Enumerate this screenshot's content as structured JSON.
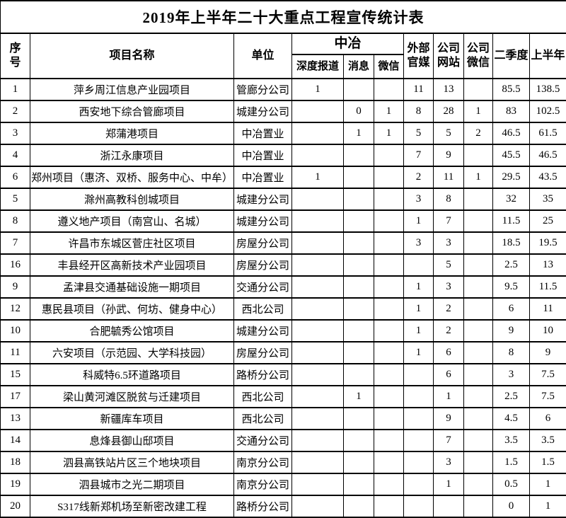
{
  "title": "2019年上半年二十大重点工程宣传统计表",
  "header": {
    "seq": "序号",
    "project": "项目名称",
    "unit": "单位",
    "group_zhongye": "中冶",
    "depth_report": "深度报道",
    "news": "消息",
    "wechat": "微信",
    "external_media": "外部官媒",
    "company_site": "公司网站",
    "company_wechat": "公司微信",
    "q2": "二季度",
    "first_half": "上半年"
  },
  "rows": [
    {
      "seq": "1",
      "project": "萍乡周江信息产业园项目",
      "unit": "管廊分公司",
      "depth": "1",
      "news": "",
      "wechat": "",
      "ext": "11",
      "site": "13",
      "cwechat": "",
      "q2": "85.5",
      "half": "138.5"
    },
    {
      "seq": "2",
      "project": "西安地下综合管廊项目",
      "unit": "城建分公司",
      "depth": "",
      "news": "0",
      "wechat": "1",
      "ext": "8",
      "site": "28",
      "cwechat": "1",
      "q2": "83",
      "half": "102.5"
    },
    {
      "seq": "3",
      "project": "郑蒲港项目",
      "unit": "中冶置业",
      "depth": "",
      "news": "1",
      "wechat": "1",
      "ext": "5",
      "site": "5",
      "cwechat": "2",
      "q2": "46.5",
      "half": "61.5"
    },
    {
      "seq": "4",
      "project": "浙江永康项目",
      "unit": "中冶置业",
      "depth": "",
      "news": "",
      "wechat": "",
      "ext": "7",
      "site": "9",
      "cwechat": "",
      "q2": "45.5",
      "half": "46.5"
    },
    {
      "seq": "6",
      "project": "郑州项目（惠济、双桥、服务中心、中牟）",
      "unit": "中冶置业",
      "depth": "1",
      "news": "",
      "wechat": "",
      "ext": "2",
      "site": "11",
      "cwechat": "1",
      "q2": "29.5",
      "half": "43.5"
    },
    {
      "seq": "5",
      "project": "滁州高教科创城项目",
      "unit": "城建分公司",
      "depth": "",
      "news": "",
      "wechat": "",
      "ext": "3",
      "site": "8",
      "cwechat": "",
      "q2": "32",
      "half": "35"
    },
    {
      "seq": "8",
      "project": "遵义地产项目（南宫山、名城）",
      "unit": "城建分公司",
      "depth": "",
      "news": "",
      "wechat": "",
      "ext": "1",
      "site": "7",
      "cwechat": "",
      "q2": "11.5",
      "half": "25"
    },
    {
      "seq": "7",
      "project": "许昌市东城区菅庄社区项目",
      "unit": "房屋分公司",
      "depth": "",
      "news": "",
      "wechat": "",
      "ext": "3",
      "site": "3",
      "cwechat": "",
      "q2": "18.5",
      "half": "19.5"
    },
    {
      "seq": "16",
      "project": "丰县经开区高新技术产业园项目",
      "unit": "房屋分公司",
      "depth": "",
      "news": "",
      "wechat": "",
      "ext": "",
      "site": "5",
      "cwechat": "",
      "q2": "2.5",
      "half": "13"
    },
    {
      "seq": "9",
      "project": "孟津县交通基础设施一期项目",
      "unit": "交通分公司",
      "depth": "",
      "news": "",
      "wechat": "",
      "ext": "1",
      "site": "3",
      "cwechat": "",
      "q2": "9.5",
      "half": "11.5"
    },
    {
      "seq": "12",
      "project": "惠民县项目（孙武、何坊、健身中心）",
      "unit": "西北公司",
      "depth": "",
      "news": "",
      "wechat": "",
      "ext": "1",
      "site": "2",
      "cwechat": "",
      "q2": "6",
      "half": "11"
    },
    {
      "seq": "10",
      "project": "合肥毓秀公馆项目",
      "unit": "城建分公司",
      "depth": "",
      "news": "",
      "wechat": "",
      "ext": "1",
      "site": "2",
      "cwechat": "",
      "q2": "9",
      "half": "10"
    },
    {
      "seq": "11",
      "project": "六安项目（示范园、大学科技园）",
      "unit": "房屋分公司",
      "depth": "",
      "news": "",
      "wechat": "",
      "ext": "1",
      "site": "6",
      "cwechat": "",
      "q2": "8",
      "half": "9"
    },
    {
      "seq": "15",
      "project": "科威特6.5环道路项目",
      "unit": "路桥分公司",
      "depth": "",
      "news": "",
      "wechat": "",
      "ext": "",
      "site": "6",
      "cwechat": "",
      "q2": "3",
      "half": "7.5"
    },
    {
      "seq": "17",
      "project": "梁山黄河滩区脱贫与迁建项目",
      "unit": "西北公司",
      "depth": "",
      "news": "1",
      "wechat": "",
      "ext": "",
      "site": "1",
      "cwechat": "",
      "q2": "2.5",
      "half": "7.5"
    },
    {
      "seq": "13",
      "project": "新疆库车项目",
      "unit": "西北公司",
      "depth": "",
      "news": "",
      "wechat": "",
      "ext": "",
      "site": "9",
      "cwechat": "",
      "q2": "4.5",
      "half": "6"
    },
    {
      "seq": "14",
      "project": "息烽县御山邸项目",
      "unit": "交通分公司",
      "depth": "",
      "news": "",
      "wechat": "",
      "ext": "",
      "site": "7",
      "cwechat": "",
      "q2": "3.5",
      "half": "3.5"
    },
    {
      "seq": "18",
      "project": "泗县高铁站片区三个地块项目",
      "unit": "南京分公司",
      "depth": "",
      "news": "",
      "wechat": "",
      "ext": "",
      "site": "3",
      "cwechat": "",
      "q2": "1.5",
      "half": "1.5"
    },
    {
      "seq": "19",
      "project": "泗县城市之光二期项目",
      "unit": "南京分公司",
      "depth": "",
      "news": "",
      "wechat": "",
      "ext": "",
      "site": "1",
      "cwechat": "",
      "q2": "0.5",
      "half": "1"
    },
    {
      "seq": "20",
      "project": "S317线新郑机场至新密改建工程",
      "unit": "路桥分公司",
      "depth": "",
      "news": "",
      "wechat": "",
      "ext": "",
      "site": "",
      "cwechat": "",
      "q2": "0",
      "half": "1"
    }
  ]
}
